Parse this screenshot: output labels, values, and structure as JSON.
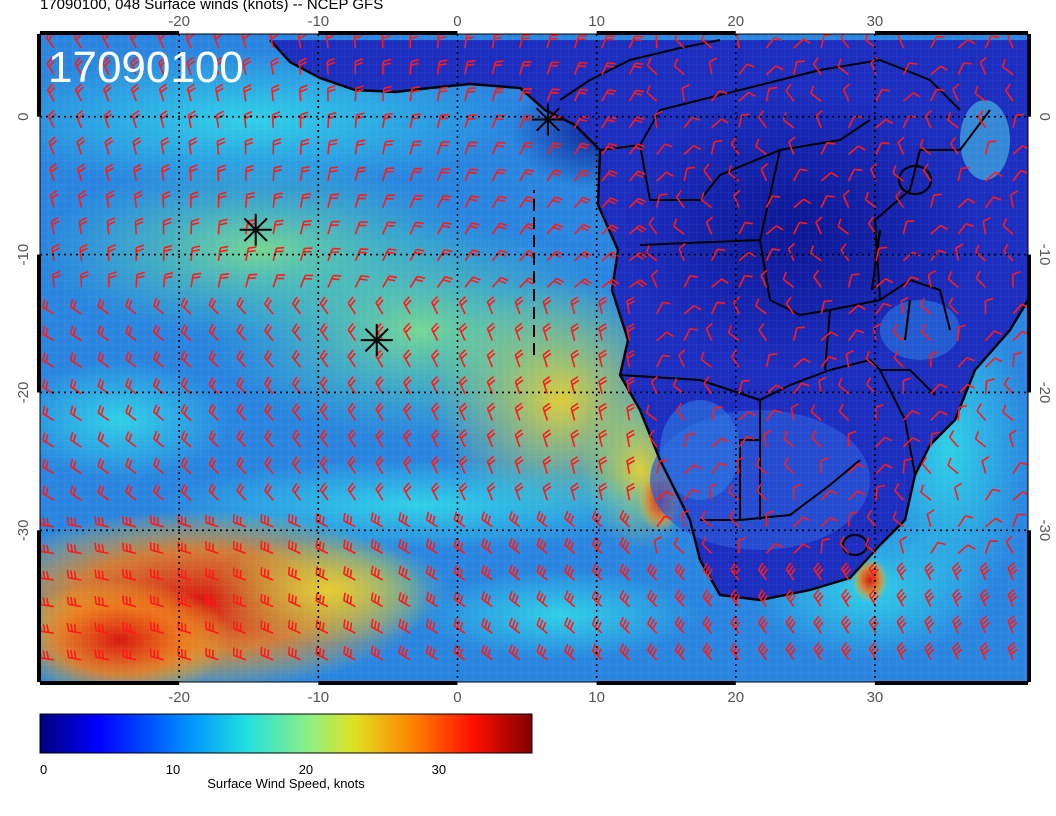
{
  "header": {
    "title": "17090100, 048 Surface winds (knots) -- NCEP GFS"
  },
  "map": {
    "timestamp": "17090100",
    "projection": "cylindrical",
    "lon_range": [
      -30,
      41
    ],
    "lat_range": [
      6,
      -41
    ],
    "grid_lon": [
      -20,
      -10,
      0,
      10,
      20,
      30
    ],
    "grid_lat": [
      0,
      -10,
      -20,
      -30
    ],
    "lon_tick_labels": [
      "-20",
      "-10",
      "0",
      "10",
      "20",
      "30"
    ],
    "lat_tick_labels": [
      "0",
      "-10",
      "-20",
      "-30"
    ],
    "storm_markers": [
      {
        "lon": 6.5,
        "lat": -0.2
      },
      {
        "lon": -14.5,
        "lat": -8.2
      },
      {
        "lon": -5.8,
        "lat": -16.2
      }
    ],
    "colors": {
      "barbs": "#ff1a1a",
      "coastline": "#000000",
      "ocean_mid": "#2ecfe0",
      "land_low": "#1a30c8"
    }
  },
  "colorbar": {
    "ticks": [
      "0",
      "10",
      "20",
      "30"
    ],
    "tick_values": [
      0,
      10,
      20,
      30
    ],
    "range": [
      0,
      37
    ],
    "label": "Surface Wind Speed, knots"
  }
}
